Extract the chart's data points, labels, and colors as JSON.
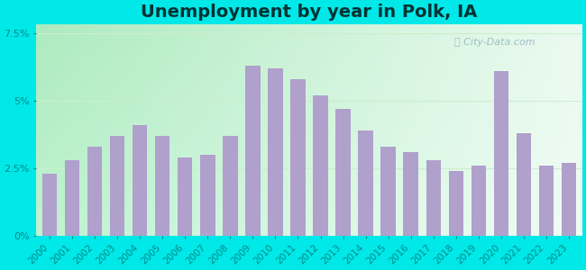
{
  "title": "Unemployment by year in Polk, IA",
  "years": [
    2000,
    2001,
    2002,
    2003,
    2004,
    2005,
    2006,
    2007,
    2008,
    2009,
    2010,
    2011,
    2012,
    2013,
    2014,
    2015,
    2016,
    2017,
    2018,
    2019,
    2020,
    2021,
    2022,
    2023
  ],
  "values": [
    2.3,
    2.8,
    3.3,
    3.7,
    4.1,
    3.7,
    2.9,
    3.0,
    3.7,
    6.3,
    6.2,
    5.8,
    5.2,
    4.7,
    3.9,
    3.3,
    3.1,
    2.8,
    2.4,
    2.6,
    6.1,
    3.8,
    2.6,
    2.7
  ],
  "bar_color": "#b0a0cc",
  "background_outer": "#00e8e8",
  "bg_top_left": "#aae8b8",
  "bg_top_right": "#e8f4e8",
  "bg_bottom_left": "#b8f0cc",
  "bg_bottom_right": "#f0faf4",
  "ylim": [
    0,
    7.8
  ],
  "yticks": [
    0,
    2.5,
    5.0,
    7.5
  ],
  "ytick_labels": [
    "0%",
    "2.5%",
    "5%",
    "7.5%"
  ],
  "title_fontsize": 14,
  "title_color": "#003333",
  "tick_color": "#008888",
  "watermark": "City-Data.com",
  "watermark_color": "#88aabb",
  "grid_color": "#cceecc",
  "tick_fontsize": 7.5
}
